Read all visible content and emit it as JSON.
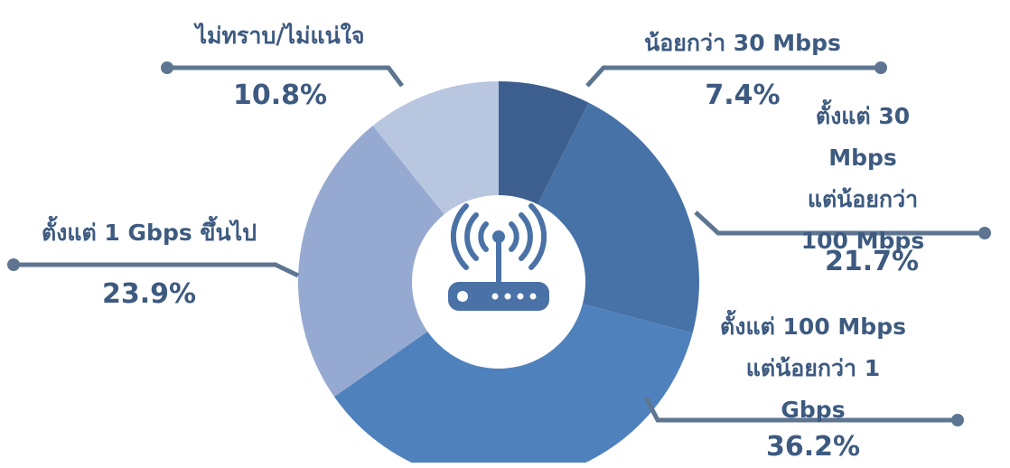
{
  "chart_data": {
    "type": "donut",
    "categories": [
      "น้อยกว่า 30 Mbps",
      "ตั้งแต่ 30 Mbps\nแต่น้อยกว่า 100 Mbps",
      "ตั้งแต่ 100 Mbps\nแต่น้อยกว่า 1 Gbps",
      "ตั้งแต่ 1 Gbps ขึ้นไป",
      "ไม่ทราบ/ไม่แน่ใจ"
    ],
    "values": [
      7.4,
      21.7,
      36.2,
      23.9,
      10.8
    ],
    "value_labels": [
      "7.4%",
      "21.7%",
      "36.2%",
      "23.9%",
      "10.8%"
    ],
    "colors": [
      "#3d5f8f",
      "#4672a8",
      "#4f81bd",
      "#95a9d1",
      "#b9c6e0"
    ]
  }
}
